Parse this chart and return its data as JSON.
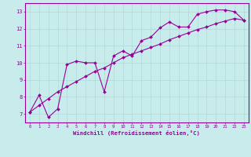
{
  "xlabel": "Windchill (Refroidissement éolien,°C)",
  "background_color": "#c8ecec",
  "grid_color": "#b0d8d8",
  "line_color": "#990099",
  "xlim": [
    -0.5,
    23.5
  ],
  "ylim": [
    6.5,
    13.5
  ],
  "xtick_vals": [
    0,
    1,
    2,
    3,
    4,
    5,
    6,
    7,
    8,
    9,
    10,
    11,
    12,
    13,
    14,
    15,
    16,
    17,
    18,
    19,
    20,
    21,
    22,
    23
  ],
  "xtick_labels": [
    "0",
    "1",
    "2",
    "3",
    "4",
    "5",
    "6",
    "7",
    "8",
    "9",
    "10",
    "11",
    "12",
    "13",
    "14",
    "15",
    "16",
    "17",
    "18",
    "19",
    "20",
    "21",
    "22",
    "23"
  ],
  "ytick_vals": [
    7,
    8,
    9,
    10,
    11,
    12,
    13
  ],
  "ytick_labels": [
    "7",
    "8",
    "9",
    "10",
    "11",
    "12",
    "13"
  ],
  "series1_x": [
    0,
    1,
    2,
    3,
    4,
    5,
    6,
    7,
    8,
    9,
    10,
    11,
    12,
    13,
    14,
    15,
    16,
    17,
    18,
    19,
    20,
    21,
    22,
    23
  ],
  "series1_y": [
    7.1,
    8.1,
    6.8,
    7.3,
    9.9,
    10.1,
    10.0,
    10.0,
    8.3,
    10.4,
    10.7,
    10.4,
    11.3,
    11.5,
    12.05,
    12.4,
    12.1,
    12.1,
    12.85,
    13.0,
    13.1,
    13.1,
    13.0,
    12.5
  ],
  "series2_x": [
    0,
    1,
    2,
    3,
    4,
    5,
    6,
    7,
    8,
    9,
    10,
    11,
    12,
    13,
    14,
    15,
    16,
    17,
    18,
    19,
    20,
    21,
    22,
    23
  ],
  "series2_y": [
    7.1,
    7.5,
    7.9,
    8.3,
    8.6,
    8.9,
    9.2,
    9.5,
    9.7,
    10.0,
    10.3,
    10.5,
    10.7,
    10.9,
    11.1,
    11.35,
    11.55,
    11.75,
    11.95,
    12.1,
    12.3,
    12.45,
    12.6,
    12.5
  ],
  "linewidth": 0.8,
  "markersize": 2.0,
  "xtick_fontsize": 4.0,
  "ytick_fontsize": 5.0,
  "xlabel_fontsize": 5.2
}
